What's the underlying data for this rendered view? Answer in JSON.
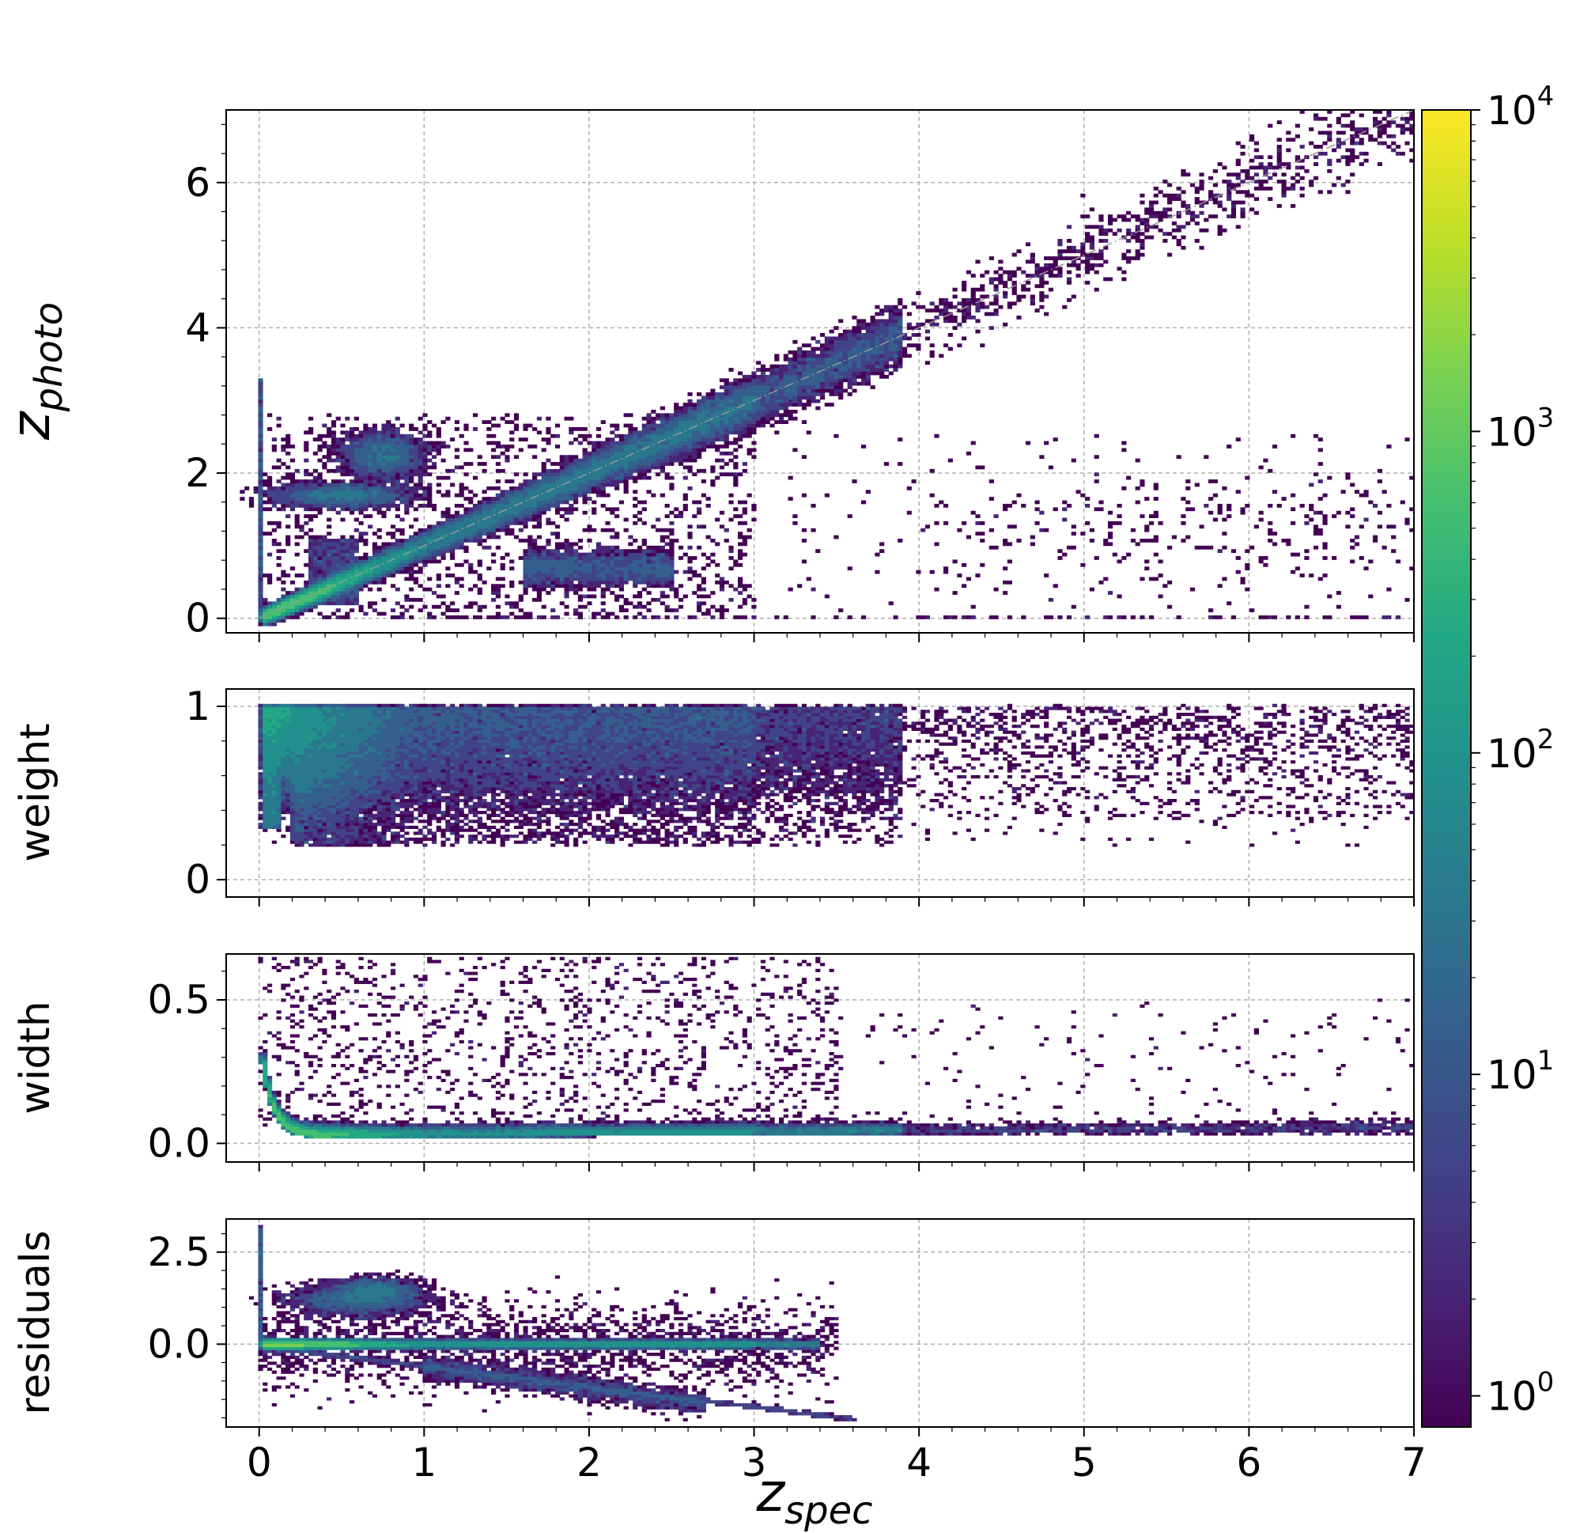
{
  "colors": {
    "viridis": [
      "#440154",
      "#482475",
      "#414487",
      "#355f8d",
      "#2a788e",
      "#21918c",
      "#22a884",
      "#44bf70",
      "#7ad151",
      "#bddf26",
      "#fde725"
    ],
    "grid": "#b0b0b0",
    "diagonal": "#999999",
    "axis": "#000000"
  },
  "chart_data": [
    {
      "id": "zphoto",
      "type": "heatmap",
      "ylabel_main": "z",
      "ylabel_sub": "photo",
      "xlim": [
        -0.2,
        7.0
      ],
      "ylim": [
        -0.2,
        7.0
      ],
      "yticks": [
        0,
        2,
        4,
        6
      ],
      "ytick_labels": [
        "0",
        "2",
        "4",
        "6"
      ],
      "reference_line": {
        "from": [
          0,
          0
        ],
        "to": [
          7,
          7
        ]
      }
    },
    {
      "id": "weight",
      "type": "heatmap",
      "ylabel": "weight",
      "xlim": [
        -0.2,
        7.0
      ],
      "ylim": [
        -0.1,
        1.1
      ],
      "yticks": [
        0,
        1
      ],
      "ytick_labels": [
        "0",
        "1"
      ]
    },
    {
      "id": "width",
      "type": "heatmap",
      "ylabel": "width",
      "xlim": [
        -0.2,
        7.0
      ],
      "ylim": [
        -0.065,
        0.66
      ],
      "yticks": [
        0.0,
        0.5
      ],
      "ytick_labels": [
        "0.0",
        "0.5"
      ]
    },
    {
      "id": "residuals",
      "type": "heatmap",
      "ylabel": "residuals",
      "xlim": [
        -0.2,
        7.0
      ],
      "ylim": [
        -2.25,
        3.4
      ],
      "yticks": [
        0.0,
        2.5
      ],
      "ytick_labels": [
        "0.0",
        "2.5"
      ],
      "xticks": [
        0,
        1,
        2,
        3,
        4,
        5,
        6,
        7
      ],
      "xtick_labels": [
        "0",
        "1",
        "2",
        "3",
        "4",
        "5",
        "6",
        "7"
      ],
      "xlabel_main": "z",
      "xlabel_sub": "spec"
    }
  ],
  "colorbar": {
    "scale": "log",
    "range": [
      0.8,
      10000
    ],
    "ticks": [
      {
        "value": 1,
        "base": "10",
        "exp": "0"
      },
      {
        "value": 10,
        "base": "10",
        "exp": "1"
      },
      {
        "value": 100,
        "base": "10",
        "exp": "2"
      },
      {
        "value": 1000,
        "base": "10",
        "exp": "3"
      },
      {
        "value": 10000,
        "base": "10",
        "exp": "4"
      }
    ]
  }
}
